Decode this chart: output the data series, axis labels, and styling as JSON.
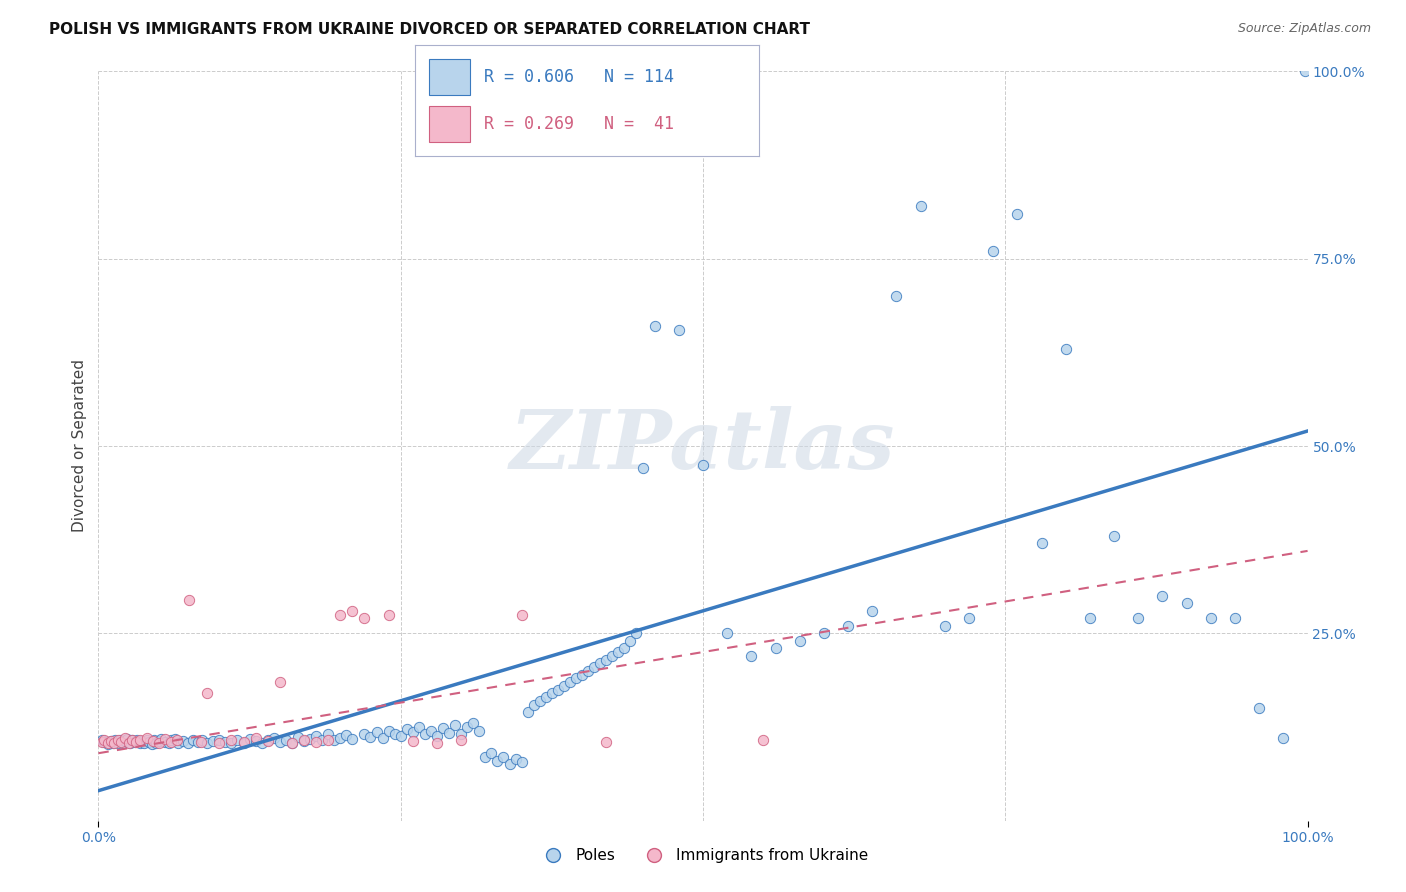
{
  "title": "POLISH VS IMMIGRANTS FROM UKRAINE DIVORCED OR SEPARATED CORRELATION CHART",
  "source": "Source: ZipAtlas.com",
  "ylabel": "Divorced or Separated",
  "watermark": "ZIPatlas",
  "legend_blue_r": "0.606",
  "legend_blue_n": "114",
  "legend_pink_r": "0.269",
  "legend_pink_n": " 41",
  "blue_color": "#b8d4ec",
  "blue_line_color": "#3a7abf",
  "pink_color": "#f4b8cb",
  "pink_line_color": "#d06080",
  "blue_scatter": [
    [
      0.3,
      10.8
    ],
    [
      0.5,
      10.5
    ],
    [
      0.8,
      10.2
    ],
    [
      1.0,
      10.6
    ],
    [
      1.2,
      10.3
    ],
    [
      1.4,
      10.8
    ],
    [
      1.6,
      10.4
    ],
    [
      1.8,
      10.7
    ],
    [
      2.0,
      10.3
    ],
    [
      2.2,
      10.6
    ],
    [
      2.4,
      10.9
    ],
    [
      2.6,
      10.4
    ],
    [
      2.8,
      10.7
    ],
    [
      3.0,
      10.5
    ],
    [
      3.2,
      10.8
    ],
    [
      3.4,
      10.3
    ],
    [
      3.6,
      10.6
    ],
    [
      3.8,
      10.4
    ],
    [
      4.0,
      10.8
    ],
    [
      4.2,
      10.5
    ],
    [
      4.4,
      10.2
    ],
    [
      4.6,
      10.7
    ],
    [
      4.8,
      10.4
    ],
    [
      5.0,
      10.6
    ],
    [
      5.2,
      10.9
    ],
    [
      5.5,
      10.5
    ],
    [
      5.8,
      10.3
    ],
    [
      6.0,
      10.7
    ],
    [
      6.3,
      10.9
    ],
    [
      6.6,
      10.4
    ],
    [
      7.0,
      10.6
    ],
    [
      7.4,
      10.3
    ],
    [
      7.8,
      10.8
    ],
    [
      8.2,
      10.5
    ],
    [
      8.6,
      10.7
    ],
    [
      9.0,
      10.4
    ],
    [
      9.5,
      10.6
    ],
    [
      10.0,
      10.8
    ],
    [
      10.5,
      10.5
    ],
    [
      11.0,
      10.3
    ],
    [
      11.5,
      10.7
    ],
    [
      12.0,
      10.4
    ],
    [
      12.5,
      10.9
    ],
    [
      13.0,
      10.6
    ],
    [
      13.5,
      10.3
    ],
    [
      14.0,
      10.7
    ],
    [
      14.5,
      11.0
    ],
    [
      15.0,
      10.5
    ],
    [
      15.5,
      10.8
    ],
    [
      16.0,
      10.4
    ],
    [
      16.5,
      11.2
    ],
    [
      17.0,
      10.6
    ],
    [
      17.5,
      10.9
    ],
    [
      18.0,
      11.3
    ],
    [
      18.5,
      10.7
    ],
    [
      19.0,
      11.5
    ],
    [
      19.5,
      10.8
    ],
    [
      20.0,
      11.0
    ],
    [
      20.5,
      11.4
    ],
    [
      21.0,
      10.9
    ],
    [
      22.0,
      11.6
    ],
    [
      22.5,
      11.2
    ],
    [
      23.0,
      11.8
    ],
    [
      23.5,
      11.0
    ],
    [
      24.0,
      12.0
    ],
    [
      24.5,
      11.5
    ],
    [
      25.0,
      11.3
    ],
    [
      25.5,
      12.2
    ],
    [
      26.0,
      11.8
    ],
    [
      26.5,
      12.5
    ],
    [
      27.0,
      11.6
    ],
    [
      27.5,
      12.0
    ],
    [
      28.0,
      11.3
    ],
    [
      28.5,
      12.3
    ],
    [
      29.0,
      11.7
    ],
    [
      29.5,
      12.8
    ],
    [
      30.0,
      11.5
    ],
    [
      30.5,
      12.5
    ],
    [
      31.0,
      13.0
    ],
    [
      31.5,
      12.0
    ],
    [
      32.0,
      8.5
    ],
    [
      32.5,
      9.0
    ],
    [
      33.0,
      8.0
    ],
    [
      33.5,
      8.5
    ],
    [
      34.0,
      7.5
    ],
    [
      34.5,
      8.2
    ],
    [
      35.0,
      7.8
    ],
    [
      35.5,
      14.5
    ],
    [
      36.0,
      15.5
    ],
    [
      36.5,
      16.0
    ],
    [
      37.0,
      16.5
    ],
    [
      37.5,
      17.0
    ],
    [
      38.0,
      17.5
    ],
    [
      38.5,
      18.0
    ],
    [
      39.0,
      18.5
    ],
    [
      39.5,
      19.0
    ],
    [
      40.0,
      19.5
    ],
    [
      40.5,
      20.0
    ],
    [
      41.0,
      20.5
    ],
    [
      41.5,
      21.0
    ],
    [
      42.0,
      21.5
    ],
    [
      42.5,
      22.0
    ],
    [
      43.0,
      22.5
    ],
    [
      43.5,
      23.0
    ],
    [
      44.0,
      24.0
    ],
    [
      44.5,
      25.0
    ],
    [
      45.0,
      47.0
    ],
    [
      46.0,
      66.0
    ],
    [
      48.0,
      65.5
    ],
    [
      50.0,
      47.5
    ],
    [
      52.0,
      25.0
    ],
    [
      54.0,
      22.0
    ],
    [
      56.0,
      23.0
    ],
    [
      58.0,
      24.0
    ],
    [
      60.0,
      25.0
    ],
    [
      62.0,
      26.0
    ],
    [
      64.0,
      28.0
    ],
    [
      66.0,
      70.0
    ],
    [
      68.0,
      82.0
    ],
    [
      70.0,
      26.0
    ],
    [
      72.0,
      27.0
    ],
    [
      74.0,
      76.0
    ],
    [
      76.0,
      81.0
    ],
    [
      78.0,
      37.0
    ],
    [
      80.0,
      63.0
    ],
    [
      82.0,
      27.0
    ],
    [
      84.0,
      38.0
    ],
    [
      86.0,
      27.0
    ],
    [
      88.0,
      30.0
    ],
    [
      90.0,
      29.0
    ],
    [
      92.0,
      27.0
    ],
    [
      94.0,
      27.0
    ],
    [
      96.0,
      15.0
    ],
    [
      98.0,
      11.0
    ],
    [
      99.8,
      100.0
    ]
  ],
  "pink_scatter": [
    [
      0.3,
      10.5
    ],
    [
      0.5,
      10.8
    ],
    [
      0.8,
      10.3
    ],
    [
      1.0,
      10.6
    ],
    [
      1.3,
      10.4
    ],
    [
      1.6,
      10.7
    ],
    [
      1.9,
      10.5
    ],
    [
      2.2,
      11.0
    ],
    [
      2.5,
      10.4
    ],
    [
      2.8,
      10.7
    ],
    [
      3.1,
      10.5
    ],
    [
      3.4,
      10.8
    ],
    [
      4.0,
      11.0
    ],
    [
      4.5,
      10.6
    ],
    [
      5.0,
      10.3
    ],
    [
      5.5,
      10.9
    ],
    [
      6.0,
      10.5
    ],
    [
      6.5,
      10.7
    ],
    [
      7.5,
      29.5
    ],
    [
      8.5,
      10.5
    ],
    [
      9.0,
      17.0
    ],
    [
      10.0,
      10.4
    ],
    [
      11.0,
      10.7
    ],
    [
      12.0,
      10.5
    ],
    [
      13.0,
      11.0
    ],
    [
      14.0,
      10.6
    ],
    [
      15.0,
      18.5
    ],
    [
      16.0,
      10.4
    ],
    [
      17.0,
      10.7
    ],
    [
      18.0,
      10.5
    ],
    [
      19.0,
      10.8
    ],
    [
      20.0,
      27.5
    ],
    [
      21.0,
      28.0
    ],
    [
      22.0,
      27.0
    ],
    [
      24.0,
      27.5
    ],
    [
      26.0,
      10.6
    ],
    [
      28.0,
      10.4
    ],
    [
      30.0,
      10.7
    ],
    [
      35.0,
      27.5
    ],
    [
      42.0,
      10.5
    ],
    [
      55.0,
      10.8
    ]
  ],
  "blue_fit_x": [
    0,
    100
  ],
  "blue_fit_y": [
    4.0,
    52.0
  ],
  "pink_fit_x": [
    0,
    100
  ],
  "pink_fit_y": [
    9.0,
    36.0
  ],
  "xlim": [
    0,
    100
  ],
  "ylim": [
    0,
    100
  ],
  "xtick_positions": [
    0,
    100
  ],
  "xtick_labels": [
    "0.0%",
    "100.0%"
  ],
  "ytick_positions": [
    25,
    50,
    75,
    100
  ],
  "ytick_labels": [
    "25.0%",
    "50.0%",
    "75.0%",
    "100.0%"
  ],
  "grid_positions": [
    0,
    25,
    50,
    75,
    100
  ],
  "title_fontsize": 11,
  "source_fontsize": 9,
  "tick_color": "#3a7abf",
  "ylabel_color": "#444444"
}
